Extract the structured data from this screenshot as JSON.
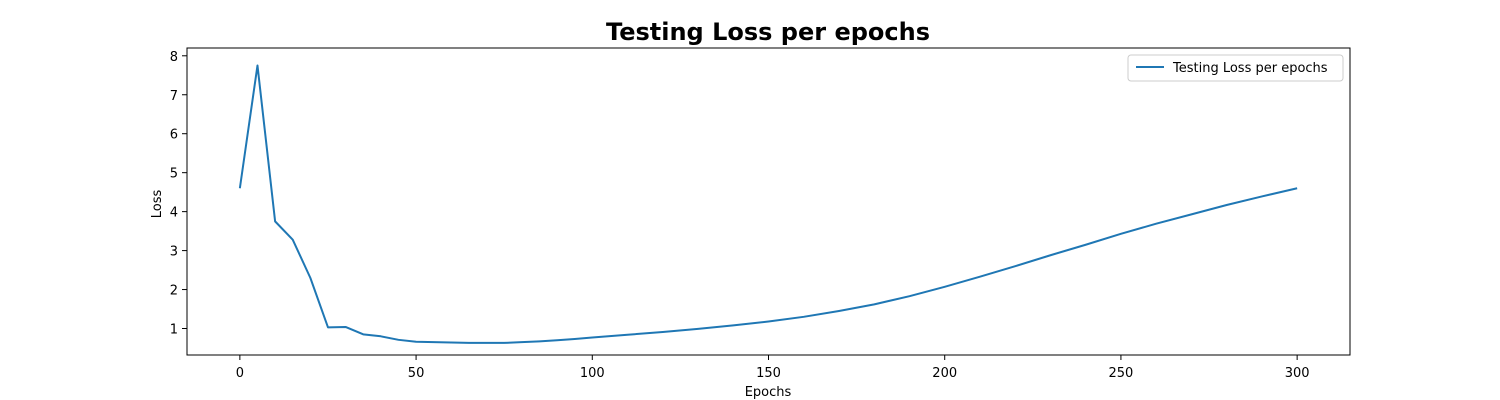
{
  "chart_data": {
    "type": "line",
    "title": "Testing Loss per epochs",
    "xlabel": "Epochs",
    "ylabel": "Loss",
    "xlim": [
      -15,
      315
    ],
    "ylim": [
      0.32,
      8.2
    ],
    "xticks": [
      0,
      50,
      100,
      150,
      200,
      250,
      300
    ],
    "yticks": [
      1,
      2,
      3,
      4,
      5,
      6,
      7,
      8
    ],
    "grid": false,
    "legend_position": "top-right",
    "series": [
      {
        "name": "Testing Loss per epochs",
        "color": "#1f77b4",
        "x": [
          0,
          5,
          10,
          15,
          20,
          25,
          30,
          35,
          40,
          45,
          50,
          55,
          60,
          65,
          70,
          75,
          80,
          85,
          90,
          95,
          100,
          110,
          120,
          130,
          140,
          150,
          160,
          170,
          180,
          190,
          200,
          210,
          220,
          230,
          240,
          250,
          260,
          270,
          280,
          290,
          300
        ],
        "values": [
          4.6,
          7.75,
          3.75,
          3.28,
          2.3,
          1.03,
          1.04,
          0.85,
          0.8,
          0.71,
          0.66,
          0.65,
          0.64,
          0.63,
          0.63,
          0.63,
          0.65,
          0.67,
          0.7,
          0.73,
          0.77,
          0.84,
          0.91,
          0.99,
          1.08,
          1.18,
          1.3,
          1.45,
          1.62,
          1.83,
          2.07,
          2.33,
          2.6,
          2.88,
          3.15,
          3.43,
          3.69,
          3.93,
          4.17,
          4.39,
          4.6
        ]
      }
    ]
  }
}
